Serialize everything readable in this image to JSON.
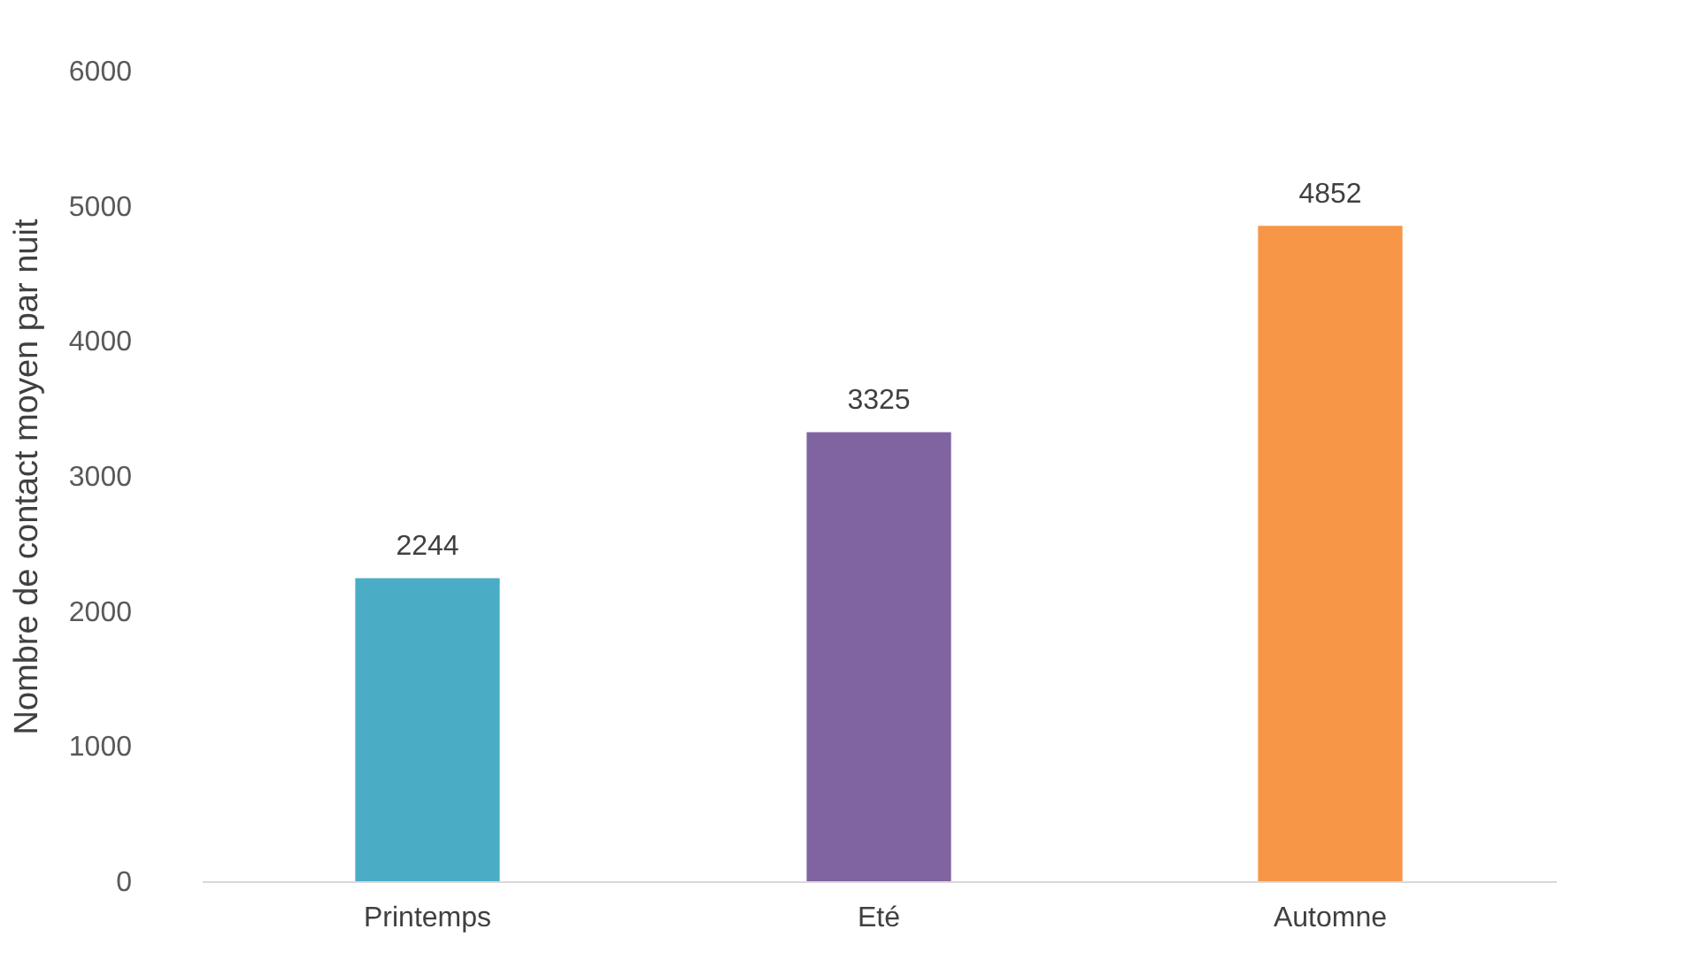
{
  "chart_data": {
    "type": "bar",
    "ylabel": "Nombre de contact moyen par nuit",
    "categories": [
      "Printemps",
      "Eté",
      "Automne"
    ],
    "values": [
      2244,
      3325,
      4852
    ],
    "colors": [
      "#4bacc6",
      "#8064a2",
      "#f79646"
    ],
    "ylim": [
      0,
      6000
    ],
    "yticks": [
      0,
      1000,
      2000,
      3000,
      4000,
      5000,
      6000
    ],
    "grid": false,
    "data_labels": true
  }
}
